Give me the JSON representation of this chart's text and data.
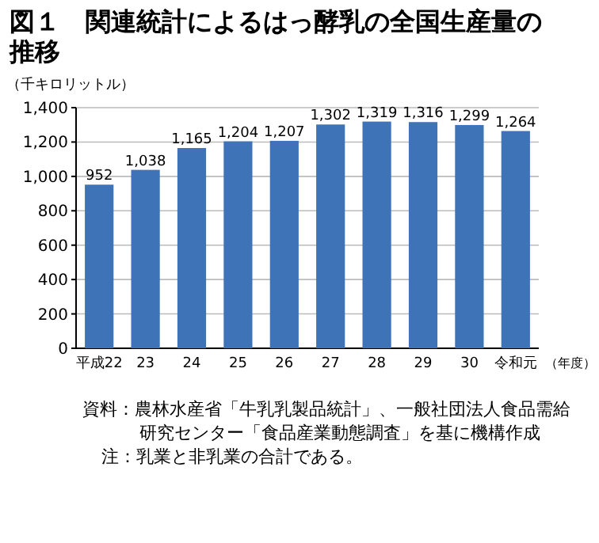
{
  "chart_data": {
    "type": "bar",
    "title": "図１　関連統計によるはっ酵乳の全国生産量の推移",
    "ylabel": "（千キロリットル）",
    "xlabel": "（年度）",
    "categories": [
      "平成22",
      "23",
      "24",
      "25",
      "26",
      "27",
      "28",
      "29",
      "30",
      "令和元"
    ],
    "values": [
      952,
      1038,
      1165,
      1204,
      1207,
      1302,
      1319,
      1316,
      1299,
      1264
    ],
    "value_labels": [
      "952",
      "1,038",
      "1,165",
      "1,204",
      "1,207",
      "1,302",
      "1,319",
      "1,316",
      "1,299",
      "1,264"
    ],
    "color": "#3f73b8",
    "ylim": [
      0,
      1400
    ],
    "yticks": [
      0,
      200,
      400,
      600,
      800,
      {
        "value": 1000,
        "label": "1,000"
      },
      {
        "value": 1200,
        "label": "1,200"
      },
      {
        "value": 1400,
        "label": "1,400"
      }
    ],
    "grid": "y",
    "annotations": [
      "資料：農林水産省「牛乳乳製品統計」、一般社団法人食品需給研究センター「食品産業動態調査」を基に機構作成",
      "注：乳業と非乳業の合計である。"
    ]
  }
}
